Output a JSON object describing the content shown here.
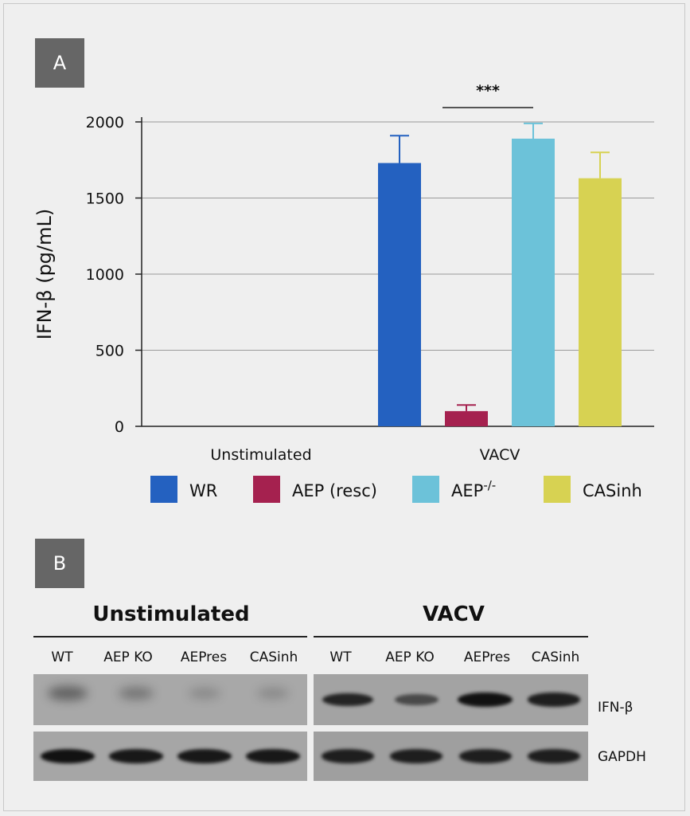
{
  "panel_a": {
    "label": "A"
  },
  "panel_b": {
    "label": "B"
  },
  "chart_data": {
    "type": "bar",
    "categories": [
      "Unstimulated",
      "VACV"
    ],
    "ylabel": "IFN-β (pg/mL)",
    "xlabel": "",
    "ylim": [
      0,
      2000
    ],
    "yticks": [
      "0",
      "500",
      "1000",
      "1500",
      "2000"
    ],
    "grid": true,
    "legend_position": "bottom",
    "series": [
      {
        "name": "WR",
        "color": "#2461c0",
        "values": [
          0,
          1730
        ],
        "errors": [
          0,
          180
        ]
      },
      {
        "name": "AEP (resc)",
        "color": "#a5214f",
        "values": [
          0,
          100
        ],
        "errors": [
          0,
          40
        ]
      },
      {
        "name": "AEP-/-",
        "color": "#6cc2d9",
        "values": [
          0,
          1890
        ],
        "errors": [
          0,
          100
        ]
      },
      {
        "name": "CASinh",
        "color": "#d7d252",
        "values": [
          0,
          1630
        ],
        "errors": [
          0,
          170
        ]
      }
    ],
    "annotations": [
      {
        "text": "***",
        "between": [
          "AEP (resc)",
          "AEP-/-"
        ],
        "category": "VACV"
      }
    ]
  },
  "legend": {
    "wr": "WR",
    "aep_resc": "AEP (resc)",
    "aep_ko_base": "AEP",
    "aep_ko_sup": "-/-",
    "casinh": "CASinh"
  },
  "blot": {
    "groups": [
      "Unstimulated",
      "VACV"
    ],
    "lanes_left": [
      "WT",
      "AEP KO",
      "AEPres",
      "CASinh"
    ],
    "lanes_right": [
      "WT",
      "AEP KO",
      "AEPres",
      "CASinh"
    ],
    "rows": [
      "IFN-β",
      "GAPDH"
    ],
    "ifn_intensity_left": [
      0.35,
      0.2,
      0.05,
      0.05
    ],
    "ifn_intensity_right": [
      0.85,
      0.55,
      1.0,
      0.9
    ],
    "gapdh_intensity_left": [
      1.0,
      0.95,
      0.95,
      0.95
    ],
    "gapdh_intensity_right": [
      0.9,
      0.9,
      0.9,
      0.9
    ]
  }
}
